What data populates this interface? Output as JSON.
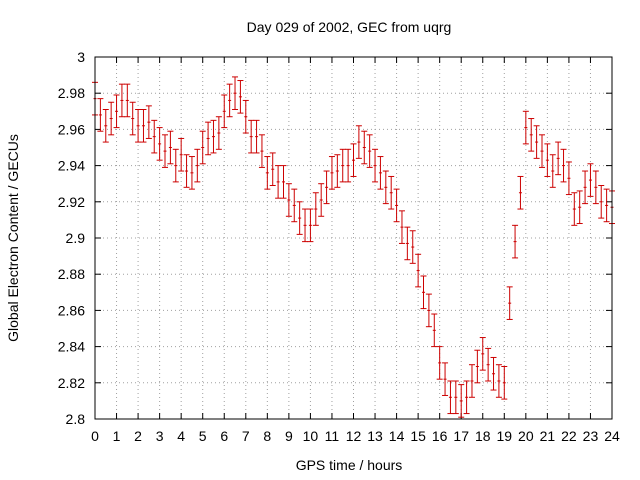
{
  "chart_data": {
    "type": "scatter",
    "title": "Day 029 of 2002, GEC from uqrg",
    "xlabel": "GPS time / hours",
    "ylabel": "Global Electron Content / GECUs",
    "xlim": [
      0,
      24
    ],
    "ylim": [
      2.8,
      3.0
    ],
    "xticks": [
      "0",
      "1",
      "2",
      "3",
      "4",
      "5",
      "6",
      "7",
      "8",
      "9",
      "10",
      "11",
      "12",
      "13",
      "14",
      "15",
      "16",
      "17",
      "18",
      "19",
      "20",
      "21",
      "22",
      "23",
      "24"
    ],
    "yticks": [
      "2.8",
      "2.82",
      "2.84",
      "2.86",
      "2.88",
      "2.9",
      "2.92",
      "2.94",
      "2.96",
      "2.98",
      "3"
    ],
    "grid": true,
    "series_color": "#cc0000",
    "error_half_width": 0.009,
    "points": [
      {
        "x": 0.0,
        "y": 2.977
      },
      {
        "x": 0.25,
        "y": 2.968
      },
      {
        "x": 0.5,
        "y": 2.962
      },
      {
        "x": 0.75,
        "y": 2.966
      },
      {
        "x": 1.0,
        "y": 2.97
      },
      {
        "x": 1.25,
        "y": 2.976
      },
      {
        "x": 1.5,
        "y": 2.976
      },
      {
        "x": 1.75,
        "y": 2.966
      },
      {
        "x": 2.0,
        "y": 2.962
      },
      {
        "x": 2.25,
        "y": 2.962
      },
      {
        "x": 2.5,
        "y": 2.964
      },
      {
        "x": 2.75,
        "y": 2.956
      },
      {
        "x": 3.0,
        "y": 2.952
      },
      {
        "x": 3.25,
        "y": 2.948
      },
      {
        "x": 3.5,
        "y": 2.95
      },
      {
        "x": 3.75,
        "y": 2.94
      },
      {
        "x": 4.0,
        "y": 2.946
      },
      {
        "x": 4.25,
        "y": 2.937
      },
      {
        "x": 4.5,
        "y": 2.936
      },
      {
        "x": 4.75,
        "y": 2.94
      },
      {
        "x": 5.0,
        "y": 2.95
      },
      {
        "x": 5.25,
        "y": 2.955
      },
      {
        "x": 5.5,
        "y": 2.956
      },
      {
        "x": 5.75,
        "y": 2.958
      },
      {
        "x": 6.0,
        "y": 2.97
      },
      {
        "x": 6.25,
        "y": 2.976
      },
      {
        "x": 6.5,
        "y": 2.98
      },
      {
        "x": 6.75,
        "y": 2.978
      },
      {
        "x": 7.0,
        "y": 2.967
      },
      {
        "x": 7.25,
        "y": 2.956
      },
      {
        "x": 7.5,
        "y": 2.956
      },
      {
        "x": 7.75,
        "y": 2.948
      },
      {
        "x": 8.0,
        "y": 2.936
      },
      {
        "x": 8.25,
        "y": 2.938
      },
      {
        "x": 8.5,
        "y": 2.931
      },
      {
        "x": 8.75,
        "y": 2.931
      },
      {
        "x": 9.0,
        "y": 2.921
      },
      {
        "x": 9.25,
        "y": 2.918
      },
      {
        "x": 9.5,
        "y": 2.911
      },
      {
        "x": 9.75,
        "y": 2.907
      },
      {
        "x": 10.0,
        "y": 2.907
      },
      {
        "x": 10.25,
        "y": 2.916
      },
      {
        "x": 10.5,
        "y": 2.921
      },
      {
        "x": 10.75,
        "y": 2.928
      },
      {
        "x": 11.0,
        "y": 2.936
      },
      {
        "x": 11.25,
        "y": 2.937
      },
      {
        "x": 11.5,
        "y": 2.94
      },
      {
        "x": 11.75,
        "y": 2.94
      },
      {
        "x": 12.0,
        "y": 2.943
      },
      {
        "x": 12.25,
        "y": 2.953
      },
      {
        "x": 12.5,
        "y": 2.95
      },
      {
        "x": 12.75,
        "y": 2.948
      },
      {
        "x": 13.0,
        "y": 2.94
      },
      {
        "x": 13.25,
        "y": 2.936
      },
      {
        "x": 13.5,
        "y": 2.928
      },
      {
        "x": 13.75,
        "y": 2.925
      },
      {
        "x": 14.0,
        "y": 2.918
      },
      {
        "x": 14.25,
        "y": 2.906
      },
      {
        "x": 14.5,
        "y": 2.897
      },
      {
        "x": 14.75,
        "y": 2.895
      },
      {
        "x": 15.0,
        "y": 2.882
      },
      {
        "x": 15.25,
        "y": 2.87
      },
      {
        "x": 15.5,
        "y": 2.86
      },
      {
        "x": 15.75,
        "y": 2.849
      },
      {
        "x": 16.0,
        "y": 2.831
      },
      {
        "x": 16.25,
        "y": 2.822
      },
      {
        "x": 16.5,
        "y": 2.812
      },
      {
        "x": 16.75,
        "y": 2.812
      },
      {
        "x": 17.0,
        "y": 2.81
      },
      {
        "x": 17.25,
        "y": 2.812
      },
      {
        "x": 17.5,
        "y": 2.821
      },
      {
        "x": 17.75,
        "y": 2.829
      },
      {
        "x": 18.0,
        "y": 2.836
      },
      {
        "x": 18.25,
        "y": 2.83
      },
      {
        "x": 18.5,
        "y": 2.825
      },
      {
        "x": 18.75,
        "y": 2.821
      },
      {
        "x": 19.0,
        "y": 2.82
      },
      {
        "x": 19.25,
        "y": 2.864
      },
      {
        "x": 19.5,
        "y": 2.898
      },
      {
        "x": 19.75,
        "y": 2.925
      },
      {
        "x": 20.0,
        "y": 2.961
      },
      {
        "x": 20.25,
        "y": 2.957
      },
      {
        "x": 20.5,
        "y": 2.953
      },
      {
        "x": 20.75,
        "y": 2.948
      },
      {
        "x": 21.0,
        "y": 2.943
      },
      {
        "x": 21.25,
        "y": 2.937
      },
      {
        "x": 21.5,
        "y": 2.944
      },
      {
        "x": 21.75,
        "y": 2.94
      },
      {
        "x": 22.0,
        "y": 2.933
      },
      {
        "x": 22.25,
        "y": 2.916
      },
      {
        "x": 22.5,
        "y": 2.917
      },
      {
        "x": 22.75,
        "y": 2.928
      },
      {
        "x": 23.0,
        "y": 2.932
      },
      {
        "x": 23.25,
        "y": 2.928
      },
      {
        "x": 23.5,
        "y": 2.92
      },
      {
        "x": 23.75,
        "y": 2.918
      },
      {
        "x": 24.0,
        "y": 2.917
      }
    ]
  }
}
